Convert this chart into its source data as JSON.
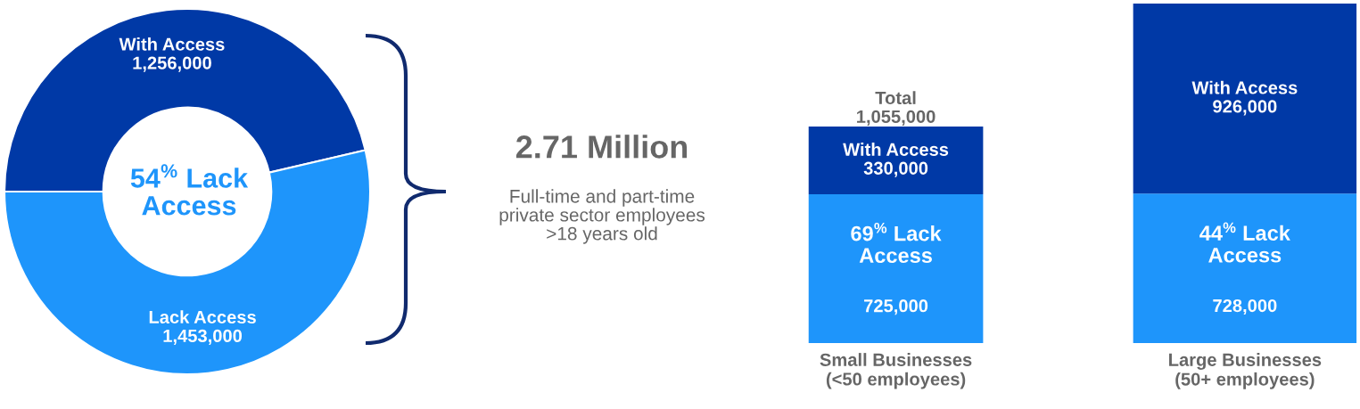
{
  "chart_data": [
    {
      "type": "donut",
      "categories": [
        "With Access",
        "Lack Access"
      ],
      "values": [
        1256000,
        1453000
      ],
      "colors": [
        "#0039a6",
        "#1e95fb"
      ],
      "value_labels": [
        "1,256,000",
        "1,453,000"
      ],
      "annotations": [
        "54$^{%}$ Lack\nAccess",
        "2.71 Million",
        "Full-time and part-time\nprivate sector employees\n>18 years old"
      ]
    },
    {
      "type": "bar",
      "stacked": true,
      "categories": [
        "Small Businesses\n(<50 employees)",
        "Large Businesses\n(50+ employees)"
      ],
      "series": [
        {
          "color": "#1e95fb",
          "values": [
            725000,
            728000
          ],
          "value_labels": [
            "725,000",
            "728,000"
          ]
        },
        {
          "name": "With Access",
          "color": "#0039a6",
          "values": [
            330000,
            926000
          ],
          "value_labels": [
            "330,000",
            "926,000"
          ]
        }
      ],
      "totals": [
        "Total\n1,055,000",
        null
      ],
      "annotations": [
        "69$^{%}$ Lack\nAccess",
        "44$^{%}$ Lack\nAccess"
      ]
    }
  ]
}
